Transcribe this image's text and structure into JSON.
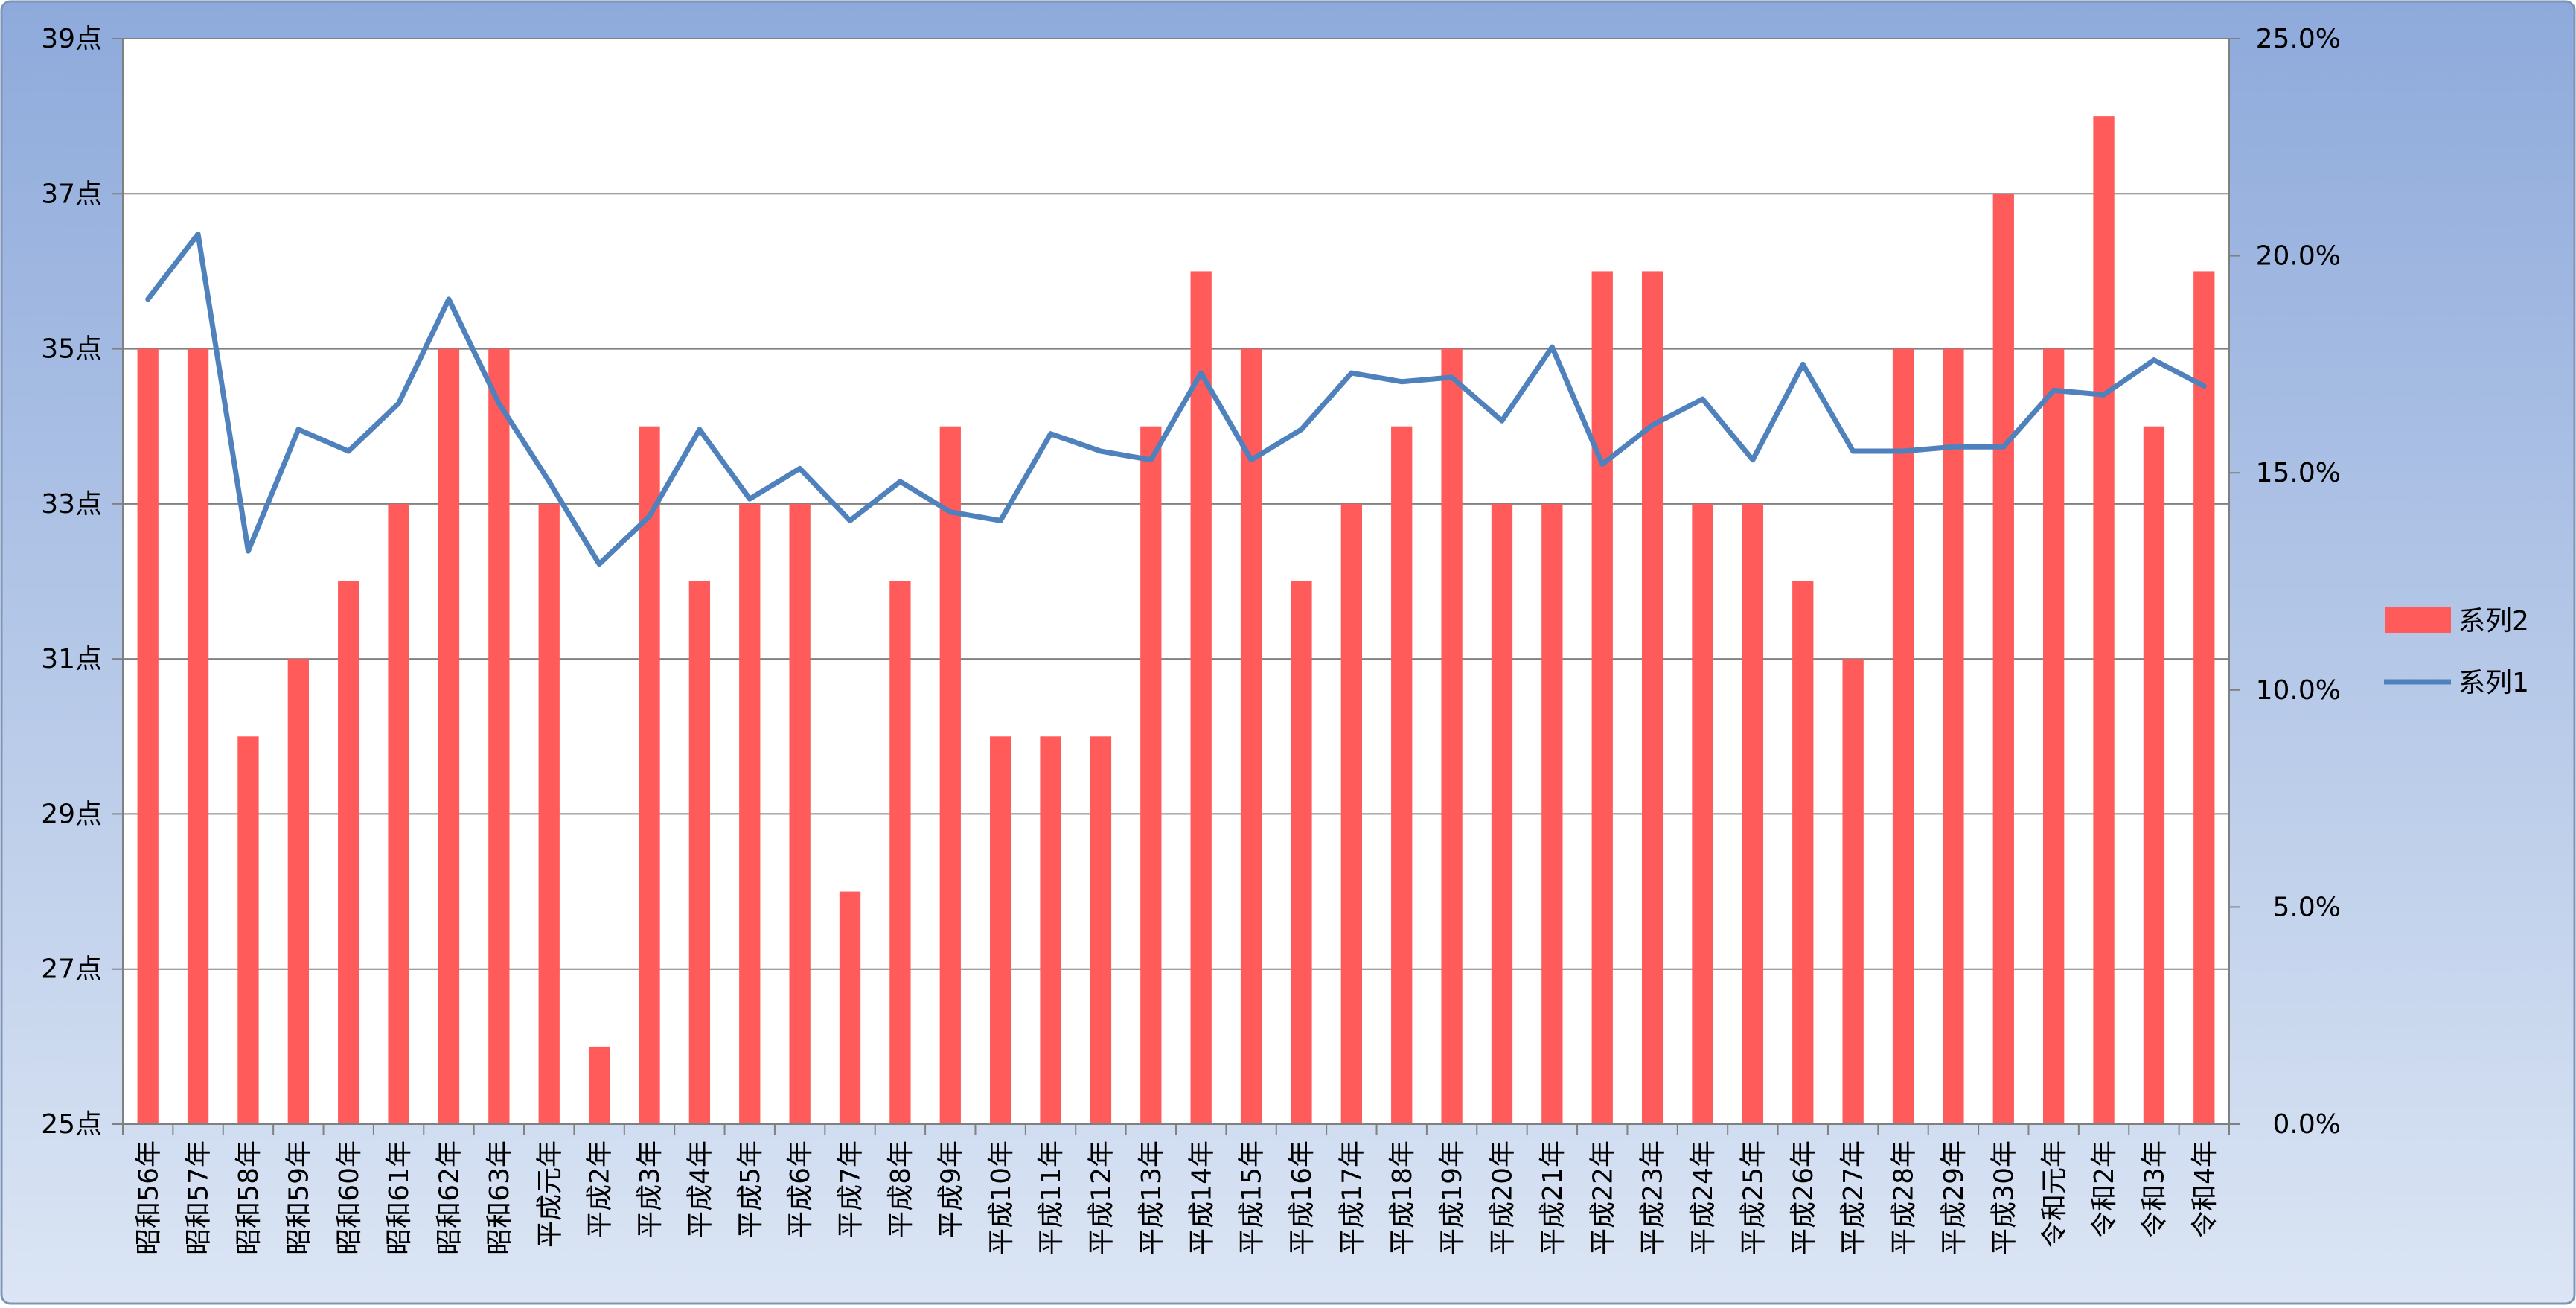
{
  "chart_data": {
    "type": "bar",
    "categories": [
      "昭和56年",
      "昭和57年",
      "昭和58年",
      "昭和59年",
      "昭和60年",
      "昭和61年",
      "昭和62年",
      "昭和63年",
      "平成元年",
      "平成2年",
      "平成3年",
      "平成4年",
      "平成5年",
      "平成6年",
      "平成7年",
      "平成8年",
      "平成9年",
      "平成10年",
      "平成11年",
      "平成12年",
      "平成13年",
      "平成14年",
      "平成15年",
      "平成16年",
      "平成17年",
      "平成18年",
      "平成19年",
      "平成20年",
      "平成21年",
      "平成22年",
      "平成23年",
      "平成24年",
      "平成25年",
      "平成26年",
      "平成27年",
      "平成28年",
      "平成29年",
      "平成30年",
      "令和元年",
      "令和2年",
      "令和3年",
      "令和4年"
    ],
    "series": [
      {
        "name": "系列2",
        "kind": "bar",
        "axis": "left",
        "color": "#ff5b5b",
        "values": [
          35,
          35,
          30,
          31,
          32,
          33,
          35,
          35,
          33,
          26,
          34,
          32,
          33,
          33,
          28,
          32,
          34,
          30,
          30,
          30,
          34,
          36,
          35,
          32,
          33,
          34,
          35,
          33,
          33,
          36,
          36,
          33,
          33,
          32,
          31,
          35,
          35,
          37,
          35,
          38,
          34,
          36
        ]
      },
      {
        "name": "系列1",
        "kind": "line",
        "axis": "right",
        "color": "#4f81bd",
        "values": [
          19.0,
          20.5,
          13.2,
          16.0,
          15.5,
          16.6,
          19.0,
          16.6,
          14.8,
          12.9,
          14.0,
          16.0,
          14.4,
          15.1,
          13.9,
          14.8,
          14.1,
          13.9,
          15.9,
          15.5,
          15.3,
          17.3,
          15.3,
          16.0,
          17.3,
          17.1,
          17.2,
          16.2,
          17.9,
          15.2,
          16.1,
          16.7,
          15.3,
          17.5,
          15.5,
          15.5,
          15.6,
          15.6,
          16.9,
          16.8,
          17.6,
          17.0
        ]
      }
    ],
    "y_left": {
      "ylim": [
        25,
        39
      ],
      "ticks": [
        25,
        27,
        29,
        31,
        33,
        35,
        37,
        39
      ],
      "tick_labels": [
        "25点",
        "27点",
        "29点",
        "31点",
        "33点",
        "35点",
        "37点",
        "39点"
      ]
    },
    "y_right": {
      "ylim": [
        0,
        25
      ],
      "ticks": [
        0,
        5,
        10,
        15,
        20,
        25
      ],
      "tick_labels": [
        "0.0%",
        "5.0%",
        "10.0%",
        "15.0%",
        "20.0%",
        "25.0%"
      ]
    },
    "grid": true,
    "legend_position": "right"
  },
  "colors": {
    "background_top": "#8eaadb",
    "background_bottom": "#dbe5f4",
    "plot_background": "#ffffff",
    "gridline": "#808080"
  }
}
